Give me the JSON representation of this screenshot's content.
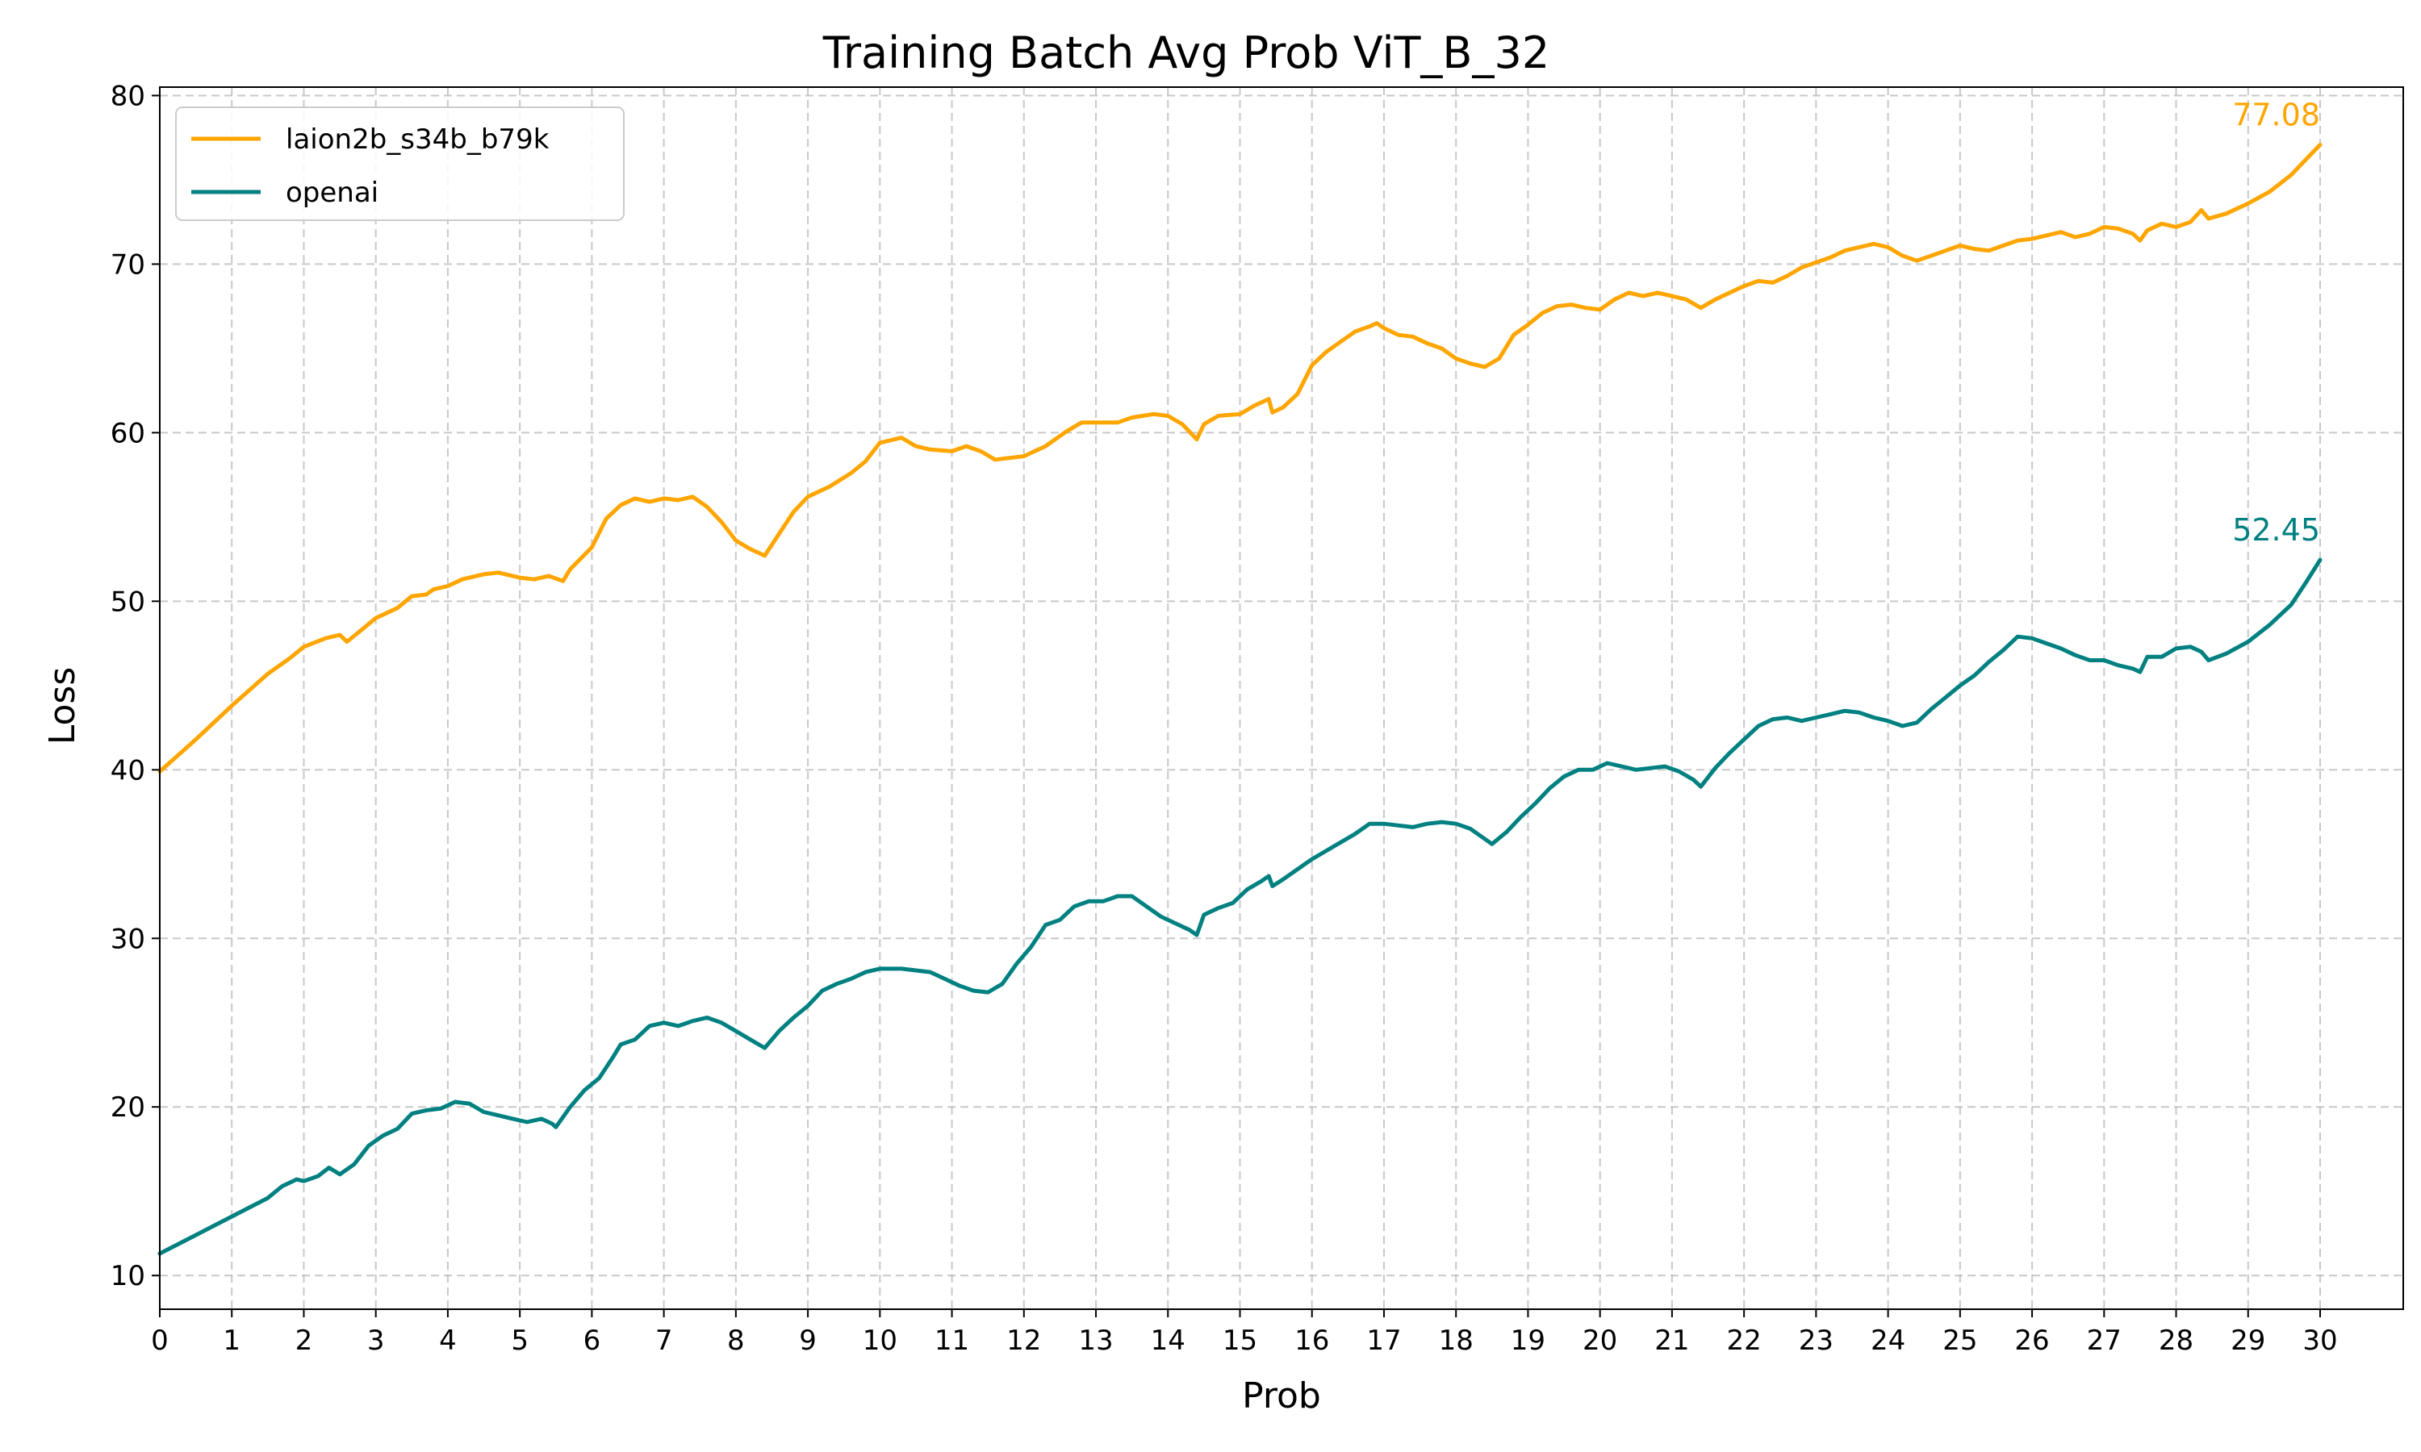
{
  "chart_data": {
    "type": "line",
    "title": "Training Batch Avg Prob ViT_B_32",
    "xlabel": "Prob",
    "ylabel": "Loss",
    "xlim": [
      0,
      30
    ],
    "ylim": [
      8,
      80.5
    ],
    "xticks": [
      0,
      1,
      2,
      3,
      4,
      5,
      6,
      7,
      8,
      9,
      10,
      11,
      12,
      13,
      14,
      15,
      16,
      17,
      18,
      19,
      20,
      21,
      22,
      23,
      24,
      25,
      26,
      27,
      28,
      29,
      30
    ],
    "yticks": [
      10,
      20,
      30,
      40,
      50,
      60,
      70,
      80
    ],
    "grid": true,
    "legend_position": "top-left",
    "series": [
      {
        "name": "laion2b_s34b_b79k",
        "color": "#FFA500",
        "end_label": "77.08",
        "points": [
          [
            0,
            39.9
          ],
          [
            0.5,
            41.8
          ],
          [
            1,
            43.8
          ],
          [
            1.5,
            45.7
          ],
          [
            1.8,
            46.6
          ],
          [
            2,
            47.3
          ],
          [
            2.3,
            47.8
          ],
          [
            2.5,
            48.0
          ],
          [
            2.6,
            47.6
          ],
          [
            2.8,
            48.3
          ],
          [
            3,
            49.0
          ],
          [
            3.3,
            49.6
          ],
          [
            3.5,
            50.3
          ],
          [
            3.7,
            50.4
          ],
          [
            3.8,
            50.7
          ],
          [
            4,
            50.9
          ],
          [
            4.2,
            51.3
          ],
          [
            4.5,
            51.6
          ],
          [
            4.7,
            51.7
          ],
          [
            5,
            51.4
          ],
          [
            5.2,
            51.3
          ],
          [
            5.4,
            51.5
          ],
          [
            5.6,
            51.2
          ],
          [
            5.7,
            51.9
          ],
          [
            6,
            53.2
          ],
          [
            6.2,
            54.9
          ],
          [
            6.4,
            55.7
          ],
          [
            6.6,
            56.1
          ],
          [
            6.8,
            55.9
          ],
          [
            7,
            56.1
          ],
          [
            7.2,
            56.0
          ],
          [
            7.4,
            56.2
          ],
          [
            7.6,
            55.6
          ],
          [
            7.8,
            54.7
          ],
          [
            8,
            53.6
          ],
          [
            8.2,
            53.1
          ],
          [
            8.4,
            52.7
          ],
          [
            8.6,
            54.0
          ],
          [
            8.8,
            55.3
          ],
          [
            9,
            56.2
          ],
          [
            9.3,
            56.8
          ],
          [
            9.6,
            57.6
          ],
          [
            9.8,
            58.3
          ],
          [
            10,
            59.4
          ],
          [
            10.3,
            59.7
          ],
          [
            10.5,
            59.2
          ],
          [
            10.7,
            59.0
          ],
          [
            11,
            58.9
          ],
          [
            11.2,
            59.2
          ],
          [
            11.4,
            58.9
          ],
          [
            11.6,
            58.4
          ],
          [
            11.8,
            58.5
          ],
          [
            12,
            58.6
          ],
          [
            12.3,
            59.2
          ],
          [
            12.6,
            60.1
          ],
          [
            12.8,
            60.6
          ],
          [
            13,
            60.6
          ],
          [
            13.3,
            60.6
          ],
          [
            13.5,
            60.9
          ],
          [
            13.8,
            61.1
          ],
          [
            14,
            61.0
          ],
          [
            14.2,
            60.5
          ],
          [
            14.4,
            59.6
          ],
          [
            14.5,
            60.5
          ],
          [
            14.7,
            61.0
          ],
          [
            15,
            61.1
          ],
          [
            15.2,
            61.6
          ],
          [
            15.4,
            62.0
          ],
          [
            15.45,
            61.2
          ],
          [
            15.6,
            61.5
          ],
          [
            15.8,
            62.3
          ],
          [
            16,
            64.0
          ],
          [
            16.2,
            64.8
          ],
          [
            16.4,
            65.4
          ],
          [
            16.6,
            66.0
          ],
          [
            16.8,
            66.3
          ],
          [
            16.9,
            66.5
          ],
          [
            17,
            66.2
          ],
          [
            17.2,
            65.8
          ],
          [
            17.4,
            65.7
          ],
          [
            17.6,
            65.3
          ],
          [
            17.8,
            65.0
          ],
          [
            18,
            64.4
          ],
          [
            18.2,
            64.1
          ],
          [
            18.4,
            63.9
          ],
          [
            18.6,
            64.4
          ],
          [
            18.8,
            65.8
          ],
          [
            19,
            66.4
          ],
          [
            19.2,
            67.1
          ],
          [
            19.4,
            67.5
          ],
          [
            19.6,
            67.6
          ],
          [
            19.8,
            67.4
          ],
          [
            20,
            67.3
          ],
          [
            20.2,
            67.9
          ],
          [
            20.4,
            68.3
          ],
          [
            20.6,
            68.1
          ],
          [
            20.8,
            68.3
          ],
          [
            21,
            68.1
          ],
          [
            21.2,
            67.9
          ],
          [
            21.4,
            67.4
          ],
          [
            21.6,
            67.9
          ],
          [
            21.8,
            68.3
          ],
          [
            22,
            68.7
          ],
          [
            22.2,
            69.0
          ],
          [
            22.4,
            68.9
          ],
          [
            22.6,
            69.3
          ],
          [
            22.8,
            69.8
          ],
          [
            23,
            70.1
          ],
          [
            23.2,
            70.4
          ],
          [
            23.4,
            70.8
          ],
          [
            23.6,
            71.0
          ],
          [
            23.8,
            71.2
          ],
          [
            24,
            71.0
          ],
          [
            24.2,
            70.5
          ],
          [
            24.4,
            70.2
          ],
          [
            24.6,
            70.5
          ],
          [
            24.8,
            70.8
          ],
          [
            25,
            71.1
          ],
          [
            25.2,
            70.9
          ],
          [
            25.4,
            70.8
          ],
          [
            25.6,
            71.1
          ],
          [
            25.8,
            71.4
          ],
          [
            26,
            71.5
          ],
          [
            26.2,
            71.7
          ],
          [
            26.4,
            71.9
          ],
          [
            26.6,
            71.6
          ],
          [
            26.8,
            71.8
          ],
          [
            27,
            72.2
          ],
          [
            27.2,
            72.1
          ],
          [
            27.4,
            71.8
          ],
          [
            27.5,
            71.4
          ],
          [
            27.6,
            72.0
          ],
          [
            27.8,
            72.4
          ],
          [
            28,
            72.2
          ],
          [
            28.2,
            72.5
          ],
          [
            28.35,
            73.2
          ],
          [
            28.45,
            72.7
          ],
          [
            28.7,
            73.0
          ],
          [
            29,
            73.6
          ],
          [
            29.3,
            74.3
          ],
          [
            29.6,
            75.3
          ],
          [
            29.8,
            76.2
          ],
          [
            30,
            77.08
          ]
        ]
      },
      {
        "name": "openai",
        "color": "#008080",
        "end_label": "52.45",
        "points": [
          [
            0,
            11.3
          ],
          [
            0.5,
            12.4
          ],
          [
            1,
            13.5
          ],
          [
            1.5,
            14.6
          ],
          [
            1.7,
            15.3
          ],
          [
            1.9,
            15.7
          ],
          [
            2,
            15.6
          ],
          [
            2.2,
            15.9
          ],
          [
            2.35,
            16.4
          ],
          [
            2.5,
            16.0
          ],
          [
            2.7,
            16.6
          ],
          [
            2.9,
            17.7
          ],
          [
            3.1,
            18.3
          ],
          [
            3.3,
            18.7
          ],
          [
            3.5,
            19.6
          ],
          [
            3.7,
            19.8
          ],
          [
            3.9,
            19.9
          ],
          [
            4.1,
            20.3
          ],
          [
            4.3,
            20.2
          ],
          [
            4.5,
            19.7
          ],
          [
            4.7,
            19.5
          ],
          [
            4.9,
            19.3
          ],
          [
            5.1,
            19.1
          ],
          [
            5.3,
            19.3
          ],
          [
            5.45,
            19.0
          ],
          [
            5.5,
            18.8
          ],
          [
            5.7,
            20.0
          ],
          [
            5.9,
            21.0
          ],
          [
            6.1,
            21.7
          ],
          [
            6.3,
            23.0
          ],
          [
            6.4,
            23.7
          ],
          [
            6.6,
            24.0
          ],
          [
            6.8,
            24.8
          ],
          [
            7,
            25.0
          ],
          [
            7.2,
            24.8
          ],
          [
            7.4,
            25.1
          ],
          [
            7.6,
            25.3
          ],
          [
            7.8,
            25.0
          ],
          [
            8,
            24.5
          ],
          [
            8.2,
            24.0
          ],
          [
            8.4,
            23.5
          ],
          [
            8.6,
            24.5
          ],
          [
            8.8,
            25.3
          ],
          [
            9,
            26.0
          ],
          [
            9.2,
            26.9
          ],
          [
            9.4,
            27.3
          ],
          [
            9.6,
            27.6
          ],
          [
            9.8,
            28.0
          ],
          [
            10,
            28.2
          ],
          [
            10.3,
            28.2
          ],
          [
            10.5,
            28.1
          ],
          [
            10.7,
            28.0
          ],
          [
            10.9,
            27.6
          ],
          [
            11.1,
            27.2
          ],
          [
            11.3,
            26.9
          ],
          [
            11.5,
            26.8
          ],
          [
            11.7,
            27.3
          ],
          [
            11.9,
            28.5
          ],
          [
            12.1,
            29.5
          ],
          [
            12.3,
            30.8
          ],
          [
            12.5,
            31.1
          ],
          [
            12.7,
            31.9
          ],
          [
            12.9,
            32.2
          ],
          [
            13.1,
            32.2
          ],
          [
            13.3,
            32.5
          ],
          [
            13.5,
            32.5
          ],
          [
            13.7,
            31.9
          ],
          [
            13.9,
            31.3
          ],
          [
            14.1,
            30.9
          ],
          [
            14.3,
            30.5
          ],
          [
            14.4,
            30.2
          ],
          [
            14.5,
            31.4
          ],
          [
            14.7,
            31.8
          ],
          [
            14.9,
            32.1
          ],
          [
            15.1,
            32.9
          ],
          [
            15.3,
            33.4
          ],
          [
            15.4,
            33.7
          ],
          [
            15.45,
            33.1
          ],
          [
            15.6,
            33.5
          ],
          [
            15.8,
            34.1
          ],
          [
            16,
            34.7
          ],
          [
            16.2,
            35.2
          ],
          [
            16.4,
            35.7
          ],
          [
            16.6,
            36.2
          ],
          [
            16.8,
            36.8
          ],
          [
            17,
            36.8
          ],
          [
            17.2,
            36.7
          ],
          [
            17.4,
            36.6
          ],
          [
            17.6,
            36.8
          ],
          [
            17.8,
            36.9
          ],
          [
            18,
            36.8
          ],
          [
            18.2,
            36.5
          ],
          [
            18.4,
            35.9
          ],
          [
            18.5,
            35.6
          ],
          [
            18.7,
            36.3
          ],
          [
            18.9,
            37.2
          ],
          [
            19.1,
            38.0
          ],
          [
            19.3,
            38.9
          ],
          [
            19.5,
            39.6
          ],
          [
            19.7,
            40.0
          ],
          [
            19.9,
            40.0
          ],
          [
            20.1,
            40.4
          ],
          [
            20.3,
            40.2
          ],
          [
            20.5,
            40.0
          ],
          [
            20.7,
            40.1
          ],
          [
            20.9,
            40.2
          ],
          [
            21.1,
            39.9
          ],
          [
            21.3,
            39.4
          ],
          [
            21.4,
            39.0
          ],
          [
            21.6,
            40.1
          ],
          [
            21.8,
            41.0
          ],
          [
            22,
            41.8
          ],
          [
            22.2,
            42.6
          ],
          [
            22.4,
            43.0
          ],
          [
            22.6,
            43.1
          ],
          [
            22.8,
            42.9
          ],
          [
            23,
            43.1
          ],
          [
            23.2,
            43.3
          ],
          [
            23.4,
            43.5
          ],
          [
            23.6,
            43.4
          ],
          [
            23.8,
            43.1
          ],
          [
            24,
            42.9
          ],
          [
            24.2,
            42.6
          ],
          [
            24.4,
            42.8
          ],
          [
            24.6,
            43.6
          ],
          [
            24.8,
            44.3
          ],
          [
            25,
            45.0
          ],
          [
            25.2,
            45.6
          ],
          [
            25.4,
            46.4
          ],
          [
            25.6,
            47.1
          ],
          [
            25.8,
            47.9
          ],
          [
            26,
            47.8
          ],
          [
            26.2,
            47.5
          ],
          [
            26.4,
            47.2
          ],
          [
            26.6,
            46.8
          ],
          [
            26.8,
            46.5
          ],
          [
            27,
            46.5
          ],
          [
            27.2,
            46.2
          ],
          [
            27.4,
            46.0
          ],
          [
            27.5,
            45.8
          ],
          [
            27.6,
            46.7
          ],
          [
            27.8,
            46.7
          ],
          [
            28,
            47.2
          ],
          [
            28.2,
            47.3
          ],
          [
            28.35,
            47.0
          ],
          [
            28.45,
            46.5
          ],
          [
            28.7,
            46.9
          ],
          [
            29,
            47.6
          ],
          [
            29.3,
            48.6
          ],
          [
            29.6,
            49.8
          ],
          [
            29.8,
            51.1
          ],
          [
            30,
            52.45
          ]
        ]
      }
    ]
  }
}
